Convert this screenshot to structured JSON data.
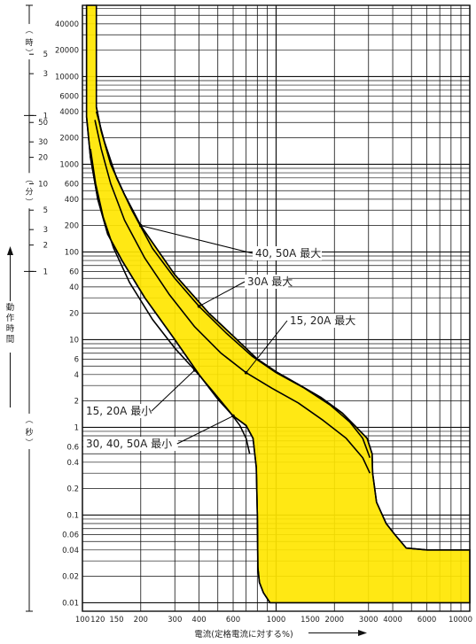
{
  "chart_data": {
    "type": "area",
    "x_scale": "log",
    "y_scale": "log",
    "xlim": [
      100,
      10000
    ],
    "ylim": [
      0.008,
      65000
    ],
    "grid": true,
    "x_ticks": [
      {
        "v": 100,
        "label": "100"
      },
      {
        "v": 120,
        "label": "120"
      },
      {
        "v": 150,
        "label": "150"
      },
      {
        "v": 200,
        "label": "200"
      },
      {
        "v": 300,
        "label": "300"
      },
      {
        "v": 400,
        "label": "400"
      },
      {
        "v": 600,
        "label": "600"
      },
      {
        "v": 1000,
        "label": "1000"
      },
      {
        "v": 1500,
        "label": "1500"
      },
      {
        "v": 2000,
        "label": "2000"
      },
      {
        "v": 3000,
        "label": "3000"
      },
      {
        "v": 4000,
        "label": "4000"
      },
      {
        "v": 6000,
        "label": "6000"
      },
      {
        "v": 10000,
        "label": "10000"
      }
    ],
    "y_ticks": [
      {
        "v": 40000,
        "label": "40000"
      },
      {
        "v": 20000,
        "label": "20000"
      },
      {
        "v": 10000,
        "label": "10000"
      },
      {
        "v": 6000,
        "label": "6000"
      },
      {
        "v": 4000,
        "label": "4000"
      },
      {
        "v": 2000,
        "label": "2000"
      },
      {
        "v": 1000,
        "label": "1000"
      },
      {
        "v": 600,
        "label": "600"
      },
      {
        "v": 400,
        "label": "400"
      },
      {
        "v": 200,
        "label": "200"
      },
      {
        "v": 100,
        "label": "100"
      },
      {
        "v": 60,
        "label": "60"
      },
      {
        "v": 40,
        "label": "40"
      },
      {
        "v": 20,
        "label": "20"
      },
      {
        "v": 10,
        "label": "10"
      },
      {
        "v": 6,
        "label": "6"
      },
      {
        "v": 4,
        "label": "4"
      },
      {
        "v": 2,
        "label": "2"
      },
      {
        "v": 1,
        "label": "1"
      },
      {
        "v": 0.6,
        "label": "0.6"
      },
      {
        "v": 0.4,
        "label": "0.4"
      },
      {
        "v": 0.2,
        "label": "0.2"
      },
      {
        "v": 0.1,
        "label": "0.1"
      },
      {
        "v": 0.06,
        "label": "0.06"
      },
      {
        "v": 0.04,
        "label": "0.04"
      },
      {
        "v": 0.02,
        "label": "0.02"
      },
      {
        "v": 0.01,
        "label": "0.01"
      }
    ],
    "unit_scales": [
      {
        "unit": "時",
        "ticks": [
          {
            "v": 18000,
            "label": "5"
          },
          {
            "v": 10800,
            "label": "3"
          },
          {
            "v": 3600,
            "label": "1"
          }
        ]
      },
      {
        "unit": "分",
        "ticks": [
          {
            "v": 3000,
            "label": "50"
          },
          {
            "v": 1800,
            "label": "30"
          },
          {
            "v": 1200,
            "label": "20"
          },
          {
            "v": 600,
            "label": "10"
          },
          {
            "v": 300,
            "label": "5"
          },
          {
            "v": 180,
            "label": "3"
          },
          {
            "v": 120,
            "label": "2"
          },
          {
            "v": 60,
            "label": "1"
          }
        ]
      },
      {
        "unit": "秒",
        "ticks": []
      }
    ],
    "xlabel": "電流(定格電流に対する%)",
    "ylabel": "動作時間",
    "band": {
      "color": "#ffe600",
      "upper": [
        [
          105,
          65000
        ],
        [
          118,
          65000
        ],
        [
          118,
          4500
        ],
        [
          125,
          2400
        ],
        [
          140,
          1000
        ],
        [
          165,
          450
        ],
        [
          200,
          200
        ],
        [
          300,
          55
        ],
        [
          450,
          20
        ],
        [
          600,
          11
        ],
        [
          800,
          6
        ],
        [
          1000,
          4.3
        ],
        [
          1300,
          3.1
        ],
        [
          1700,
          2.2
        ],
        [
          2200,
          1.45
        ],
        [
          2600,
          1.0
        ],
        [
          2950,
          0.75
        ],
        [
          3130,
          0.5
        ],
        [
          3150,
          0.3
        ],
        [
          3300,
          0.14
        ],
        [
          3700,
          0.08
        ],
        [
          4100,
          0.06
        ],
        [
          4700,
          0.042
        ],
        [
          6000,
          0.04
        ],
        [
          10000,
          0.04
        ]
      ],
      "lower": [
        [
          105,
          65000
        ],
        [
          105,
          3500
        ],
        [
          110,
          1200
        ],
        [
          120,
          400
        ],
        [
          135,
          160
        ],
        [
          160,
          80
        ],
        [
          210,
          30
        ],
        [
          300,
          10
        ],
        [
          400,
          4
        ],
        [
          500,
          2.1
        ],
        [
          600,
          1.35
        ],
        [
          700,
          1.05
        ],
        [
          760,
          0.75
        ],
        [
          790,
          0.35
        ],
        [
          800,
          0.1
        ],
        [
          805,
          0.025
        ],
        [
          820,
          0.017
        ],
        [
          860,
          0.013
        ],
        [
          930,
          0.01
        ],
        [
          10000,
          0.01
        ]
      ]
    },
    "series": [
      {
        "name": "40, 50A 最大",
        "points": [
          [
            118,
            4500
          ],
          [
            125,
            2400
          ],
          [
            140,
            1000
          ],
          [
            165,
            450
          ],
          [
            200,
            200
          ],
          [
            300,
            55
          ],
          [
            450,
            20
          ],
          [
            600,
            11
          ],
          [
            800,
            6
          ],
          [
            1000,
            4.3
          ],
          [
            1300,
            3.1
          ],
          [
            1700,
            2.2
          ],
          [
            2200,
            1.45
          ],
          [
            2600,
            1.0
          ],
          [
            2950,
            0.75
          ],
          [
            3130,
            0.5
          ],
          [
            3150,
            0.3
          ],
          [
            3300,
            0.14
          ],
          [
            3700,
            0.08
          ],
          [
            4100,
            0.06
          ],
          [
            4700,
            0.042
          ],
          [
            6000,
            0.04
          ],
          [
            10000,
            0.04
          ]
        ]
      },
      {
        "name": "30A 最大",
        "points": [
          [
            118,
            4000
          ],
          [
            130,
            1800
          ],
          [
            150,
            700
          ],
          [
            180,
            300
          ],
          [
            230,
            110
          ],
          [
            300,
            50
          ],
          [
            400,
            24
          ],
          [
            550,
            12
          ],
          [
            750,
            6.5
          ],
          [
            1000,
            4.2
          ],
          [
            1400,
            2.8
          ],
          [
            1900,
            1.8
          ],
          [
            2400,
            1.15
          ],
          [
            2800,
            0.75
          ],
          [
            3050,
            0.45
          ]
        ]
      },
      {
        "name": "15, 20A 最大",
        "points": [
          [
            116,
            3200
          ],
          [
            125,
            1500
          ],
          [
            140,
            600
          ],
          [
            165,
            230
          ],
          [
            210,
            85
          ],
          [
            280,
            33
          ],
          [
            380,
            14
          ],
          [
            520,
            7
          ],
          [
            700,
            4.2
          ],
          [
            950,
            2.8
          ],
          [
            1300,
            1.9
          ],
          [
            1750,
            1.2
          ],
          [
            2300,
            0.75
          ],
          [
            2800,
            0.45
          ],
          [
            3050,
            0.3
          ]
        ]
      },
      {
        "name": "15, 20A 最小",
        "points": [
          [
            110,
            1500
          ],
          [
            117,
            600
          ],
          [
            128,
            250
          ],
          [
            145,
            110
          ],
          [
            175,
            45
          ],
          [
            230,
            17
          ],
          [
            300,
            8
          ],
          [
            380,
            4.5
          ],
          [
            470,
            2.6
          ],
          [
            570,
            1.55
          ],
          [
            650,
            1.05
          ],
          [
            700,
            0.75
          ],
          [
            730,
            0.5
          ]
        ]
      },
      {
        "name": "30, 40, 50A 最小",
        "points": [
          [
            105,
            3500
          ],
          [
            110,
            1200
          ],
          [
            120,
            400
          ],
          [
            135,
            160
          ],
          [
            160,
            80
          ],
          [
            210,
            30
          ],
          [
            300,
            10
          ],
          [
            400,
            4
          ],
          [
            500,
            2.1
          ],
          [
            600,
            1.35
          ],
          [
            700,
            1.05
          ],
          [
            760,
            0.75
          ],
          [
            790,
            0.35
          ],
          [
            800,
            0.1
          ],
          [
            805,
            0.025
          ],
          [
            820,
            0.017
          ],
          [
            860,
            0.013
          ],
          [
            930,
            0.01
          ]
        ]
      }
    ],
    "annotations": [
      {
        "text": "40, 50A 最大",
        "series": 0,
        "at": [
          200,
          200
        ]
      },
      {
        "text": "30A 最大",
        "series": 1,
        "at": [
          400,
          24
        ]
      },
      {
        "text": "15, 20A 最大",
        "series": 2,
        "at": [
          700,
          4.2
        ]
      },
      {
        "text": "15, 20A 最小",
        "series": 3,
        "at": [
          380,
          4.5
        ]
      },
      {
        "text": "30, 40, 50A 最小",
        "series": 4,
        "at": [
          600,
          1.35
        ]
      }
    ]
  }
}
